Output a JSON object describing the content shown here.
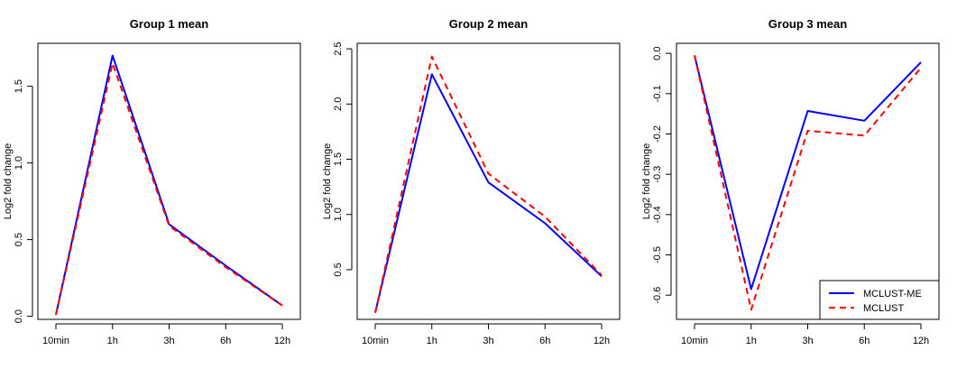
{
  "chart_data": [
    {
      "type": "line",
      "title": "Group 1 mean",
      "ylabel": "Log2 fold change",
      "categories": [
        "10min",
        "1h",
        "3h",
        "6h",
        "12h"
      ],
      "yticks": [
        0.0,
        0.5,
        1.0,
        1.5
      ],
      "ytick_labels": [
        "0.0",
        "0.5",
        "1.0",
        "1.5"
      ],
      "ylim": [
        -0.02,
        1.78
      ],
      "series": [
        {
          "name": "MCLUST-ME",
          "color": "#0000ff",
          "dash": "solid",
          "values": [
            0.01,
            1.7,
            0.6,
            0.33,
            0.07
          ]
        },
        {
          "name": "MCLUST",
          "color": "#ff0000",
          "dash": "dashed",
          "values": [
            0.01,
            1.65,
            0.59,
            0.32,
            0.07
          ]
        }
      ]
    },
    {
      "type": "line",
      "title": "Group 2 mean",
      "ylabel": "Log2 fold change",
      "categories": [
        "10min",
        "1h",
        "3h",
        "6h",
        "12h"
      ],
      "yticks": [
        0.5,
        1.0,
        1.5,
        2.0,
        2.5
      ],
      "ytick_labels": [
        "0.5",
        "1.0",
        "1.5",
        "2.0",
        "2.5"
      ],
      "ylim": [
        0.05,
        2.55
      ],
      "series": [
        {
          "name": "MCLUST-ME",
          "color": "#0000ff",
          "dash": "solid",
          "values": [
            0.11,
            2.27,
            1.29,
            0.92,
            0.44
          ]
        },
        {
          "name": "MCLUST",
          "color": "#ff0000",
          "dash": "dashed",
          "values": [
            0.11,
            2.43,
            1.37,
            0.98,
            0.45
          ]
        }
      ]
    },
    {
      "type": "line",
      "title": "Group 3 mean",
      "ylabel": "Log2 fold change",
      "categories": [
        "10min",
        "1h",
        "3h",
        "6h",
        "12h"
      ],
      "yticks": [
        0.0,
        -0.1,
        -0.2,
        -0.3,
        -0.4,
        -0.5,
        -0.6
      ],
      "ytick_labels": [
        "0.0",
        "-0.1",
        "-0.2",
        "-0.3",
        "-0.4",
        "-0.5",
        "-0.6"
      ],
      "ylim": [
        -0.66,
        0.025
      ],
      "series": [
        {
          "name": "MCLUST-ME",
          "color": "#0000ff",
          "dash": "solid",
          "values": [
            -0.005,
            -0.585,
            -0.143,
            -0.167,
            -0.022
          ]
        },
        {
          "name": "MCLUST",
          "color": "#ff0000",
          "dash": "dashed",
          "values": [
            -0.005,
            -0.636,
            -0.192,
            -0.204,
            -0.036
          ]
        }
      ],
      "legend": {
        "placement": "bottom-right",
        "entries": [
          "MCLUST-ME",
          "MCLUST"
        ]
      }
    }
  ]
}
